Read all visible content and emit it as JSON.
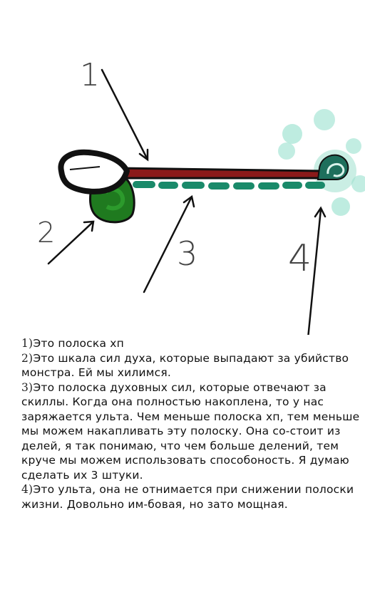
{
  "callouts": {
    "c1": "1",
    "c2": "2",
    "c3": "3",
    "c4": "4"
  },
  "notes": [
    {
      "num": "1)",
      "text": "Это полоска хп"
    },
    {
      "num": "2)",
      "text": "Это шкала сил духа, которые выпадают за убийство монстра. Ей мы хилимся."
    },
    {
      "num": "3)",
      "text": "Это полоска духовных сил, которые отвечают за скиллы. Когда она полностью накоплена, то у нас заряжается ульта. Чем меньше полоска хп, тем меньше мы можем накапливать эту полоску. Она со-стоит из делей, я так понимаю, что чем больше делений, тем круче мы можем использовать способоность. Я думаю сделать их 3 штуки."
    },
    {
      "num": "4)",
      "text": "Это ульта, она не отнимается при снижении полоски жизни. Довольно им-бовая, но зато мощная."
    }
  ],
  "colors": {
    "hp_bar": "#8b1a1a",
    "spirit_segments": "#1a8a6a",
    "spirit_orb": "#1f7a1f",
    "ult_glow": "#7fd6c0",
    "outline": "#111111"
  },
  "icons": [
    "health-bar",
    "spirit-orb",
    "spirit-segments",
    "ultimate-icon",
    "pointer-arrow"
  ]
}
